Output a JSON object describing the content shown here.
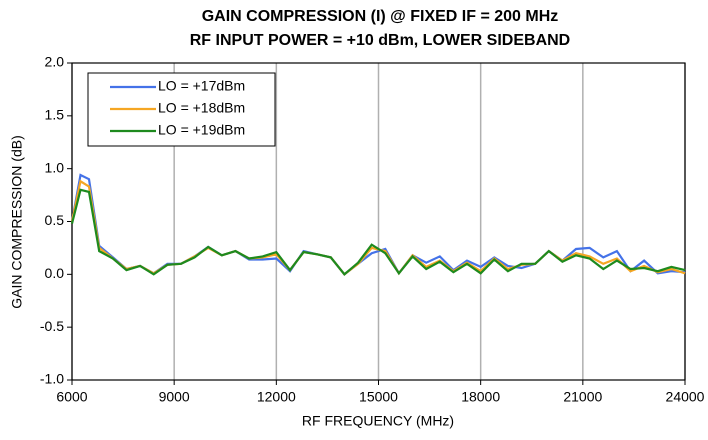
{
  "chart_data": {
    "type": "line",
    "title": [
      "GAIN COMPRESSION (I) @ FIXED IF = 200 MHz",
      "RF INPUT POWER = +10 dBm, LOWER SIDEBAND"
    ],
    "x_label": "RF FREQUENCY (MHz)",
    "y_label": "GAIN COMPRESSION (dB)",
    "x": [
      6000,
      6250,
      6500,
      6800,
      7200,
      7600,
      8000,
      8400,
      8800,
      9200,
      9600,
      10000,
      10400,
      10800,
      11200,
      11600,
      12000,
      12400,
      12800,
      13200,
      13600,
      14000,
      14400,
      14800,
      15200,
      15600,
      16000,
      16400,
      16800,
      17200,
      17600,
      18000,
      18400,
      18800,
      19200,
      19600,
      20000,
      20400,
      20800,
      21200,
      21600,
      22000,
      22400,
      22800,
      23200,
      23600,
      24000
    ],
    "series": [
      {
        "name": "LO = +17dBm",
        "color": "#4472e8",
        "values": [
          0.5,
          0.94,
          0.9,
          0.27,
          0.16,
          0.05,
          0.08,
          0.01,
          0.1,
          0.1,
          0.17,
          0.26,
          0.18,
          0.22,
          0.14,
          0.14,
          0.15,
          0.03,
          0.22,
          0.19,
          0.16,
          0.0,
          0.1,
          0.2,
          0.24,
          0.01,
          0.18,
          0.11,
          0.17,
          0.04,
          0.13,
          0.07,
          0.16,
          0.08,
          0.06,
          0.1,
          0.22,
          0.13,
          0.24,
          0.25,
          0.16,
          0.22,
          0.03,
          0.13,
          0.01,
          0.03,
          0.02
        ]
      },
      {
        "name": "LO = +18dBm",
        "color": "#f5a623",
        "values": [
          0.5,
          0.88,
          0.83,
          0.25,
          0.15,
          0.05,
          0.08,
          0.01,
          0.09,
          0.1,
          0.17,
          0.25,
          0.18,
          0.22,
          0.15,
          0.16,
          0.19,
          0.04,
          0.21,
          0.19,
          0.16,
          0.0,
          0.1,
          0.25,
          0.22,
          0.01,
          0.18,
          0.07,
          0.13,
          0.03,
          0.11,
          0.03,
          0.15,
          0.05,
          0.09,
          0.1,
          0.22,
          0.13,
          0.2,
          0.17,
          0.1,
          0.15,
          0.03,
          0.08,
          0.02,
          0.05,
          0.01
        ]
      },
      {
        "name": "LO = +19dBm",
        "color": "#1e8a1e",
        "values": [
          0.48,
          0.8,
          0.78,
          0.22,
          0.15,
          0.04,
          0.08,
          0.0,
          0.09,
          0.1,
          0.16,
          0.26,
          0.18,
          0.22,
          0.15,
          0.17,
          0.21,
          0.04,
          0.21,
          0.19,
          0.16,
          0.0,
          0.11,
          0.28,
          0.2,
          0.01,
          0.17,
          0.05,
          0.12,
          0.02,
          0.1,
          0.01,
          0.14,
          0.03,
          0.1,
          0.1,
          0.22,
          0.12,
          0.18,
          0.15,
          0.05,
          0.13,
          0.05,
          0.06,
          0.03,
          0.07,
          0.04
        ]
      }
    ],
    "xlim": [
      6000,
      24000
    ],
    "xticks": [
      6000,
      9000,
      12000,
      15000,
      18000,
      21000,
      24000
    ],
    "ylim": [
      -1,
      2
    ],
    "yticks": [
      {
        "value": -1,
        "label": "-1.0"
      },
      -0.5,
      {
        "value": 0,
        "label": "0.0"
      },
      0.5,
      {
        "value": 1,
        "label": "1.0"
      },
      1.5,
      {
        "value": 2,
        "label": "2.0"
      }
    ],
    "grid": "x",
    "legend": "upper-left"
  }
}
